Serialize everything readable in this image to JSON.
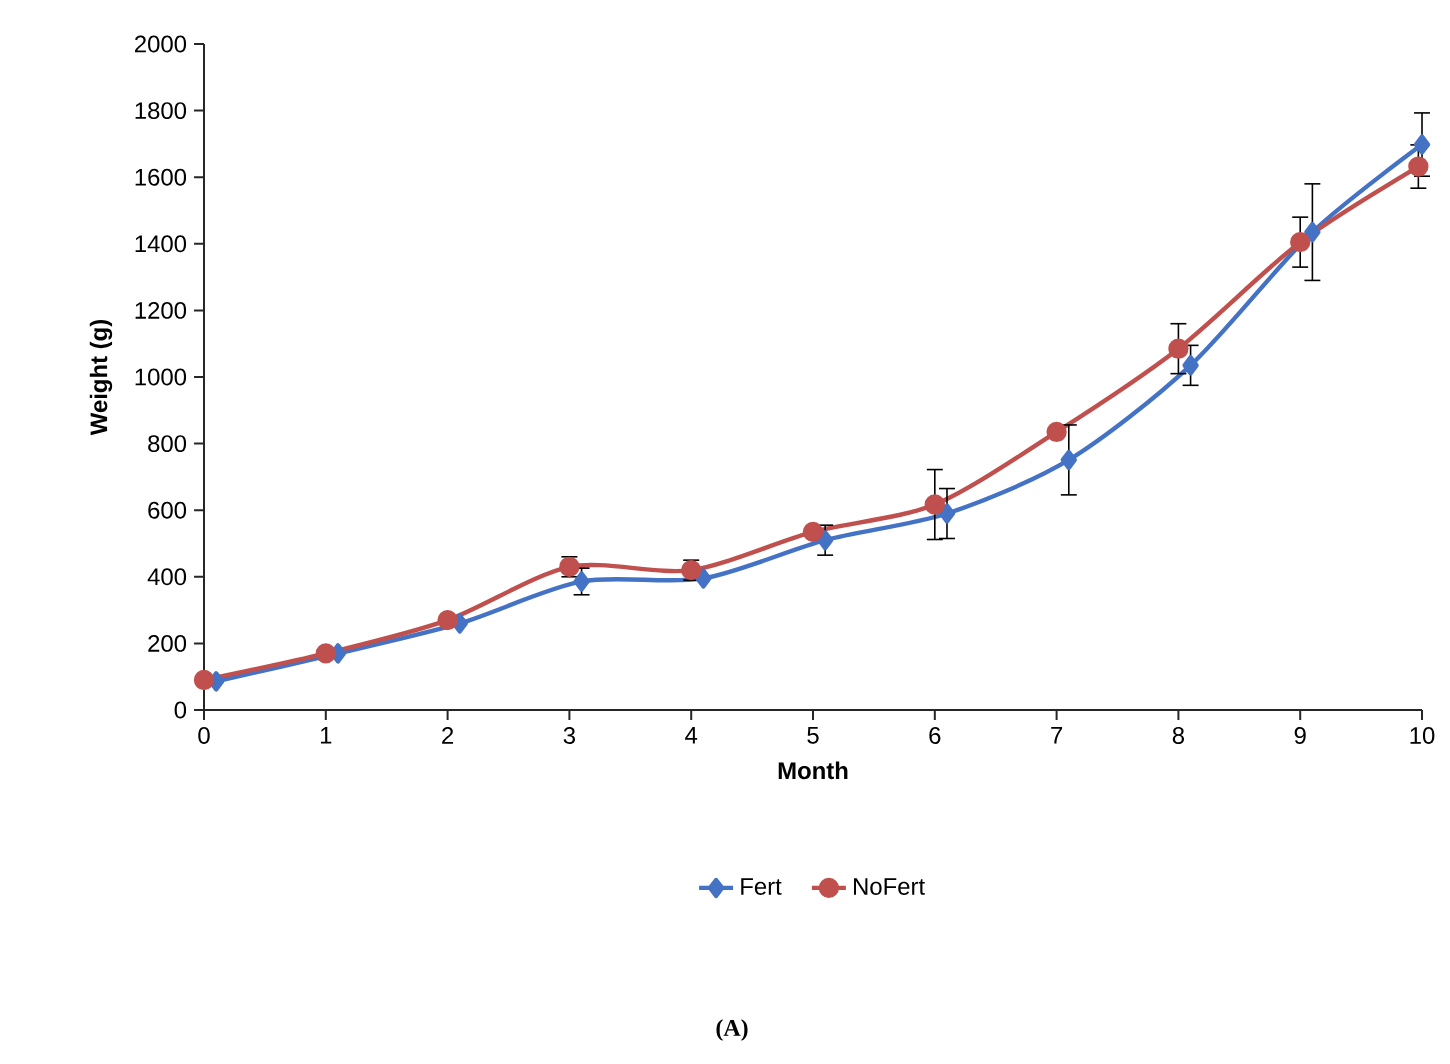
{
  "chart_data": {
    "type": "line",
    "xlabel": "Month",
    "ylabel": "Weight (g)",
    "xlim": [
      0,
      10
    ],
    "ylim": [
      0,
      2000
    ],
    "xticks": [
      0,
      1,
      2,
      3,
      4,
      5,
      6,
      7,
      8,
      9,
      10
    ],
    "yticks": [
      0,
      200,
      400,
      600,
      800,
      1000,
      1200,
      1400,
      1600,
      1800,
      2000
    ],
    "legend": "bottom",
    "grid": false,
    "series": [
      {
        "name": "Fert",
        "color": "#4472c4",
        "marker": "diamond",
        "x": [
          0.1,
          1.1,
          2.1,
          3.1,
          4.1,
          5.1,
          6.1,
          7.1,
          8.1,
          9.1,
          10
        ],
        "values": [
          86,
          170,
          260,
          386,
          395,
          510,
          590,
          751,
          1035,
          1435,
          1698
        ],
        "errors": [
          null,
          null,
          null,
          40,
          null,
          45,
          75,
          105,
          60,
          145,
          95
        ]
      },
      {
        "name": "NoFert",
        "color": "#c0504d",
        "marker": "circle",
        "x": [
          0,
          1,
          2,
          3,
          4,
          5,
          6,
          7,
          8,
          9,
          9.97
        ],
        "values": [
          90,
          170,
          270,
          430,
          420,
          535,
          617,
          835,
          1085,
          1405,
          1632
        ],
        "errors": [
          null,
          null,
          null,
          30,
          30,
          null,
          105,
          null,
          75,
          75,
          65
        ]
      }
    ],
    "annotations": [
      "**(A)**"
    ]
  }
}
